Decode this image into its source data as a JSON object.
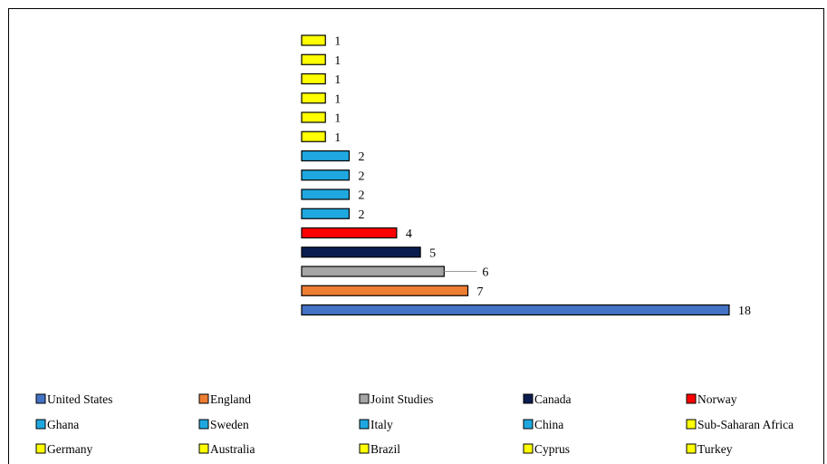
{
  "chart_data": {
    "type": "bar",
    "orientation": "horizontal",
    "categories": [
      "United States",
      "England",
      "Joint Studies",
      "Canada",
      "Norway",
      "Ghana",
      "Sweden",
      "Italy",
      "China",
      "Sub-Saharan Africa",
      "Germany",
      "Australia",
      "Brazil",
      "Cyprus",
      "Turkey"
    ],
    "values": [
      18,
      7,
      6,
      5,
      4,
      2,
      2,
      2,
      2,
      1,
      1,
      1,
      1,
      1,
      1
    ],
    "colors": [
      "#4472C4",
      "#ED7D31",
      "#A5A5A5",
      "#0B1D4F",
      "#FF0000",
      "#1FA8E0",
      "#1FA8E0",
      "#1FA8E0",
      "#1FA8E0",
      "#FFFF00",
      "#FFFF00",
      "#FFFF00",
      "#FFFF00",
      "#FFFF00",
      "#FFFF00"
    ],
    "data_labels": [
      "18",
      "7",
      "6",
      "5",
      "4",
      "2",
      "2",
      "2",
      "2",
      "1",
      "1",
      "1",
      "1",
      "1",
      "1"
    ],
    "xlim": [
      0,
      18
    ],
    "grid": false,
    "axes_visible": false,
    "legend_position": "bottom",
    "title": "",
    "xlabel": "",
    "ylabel": ""
  }
}
